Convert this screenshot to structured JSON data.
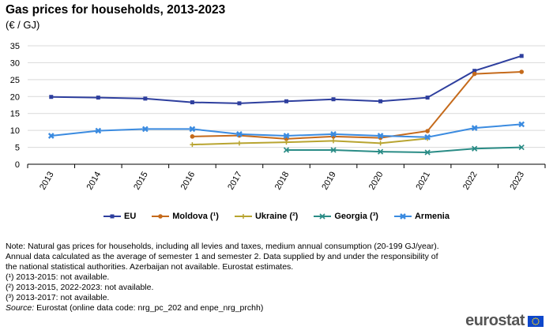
{
  "header": {
    "title": "Gas prices for households, 2013-2023",
    "subtitle": "(€ / GJ)"
  },
  "chart_data": {
    "type": "line",
    "title": "Gas prices for households, 2013-2023",
    "subtitle": "(€ / GJ)",
    "xlabel": "",
    "ylabel": "",
    "categories": [
      "2013",
      "2014",
      "2015",
      "2016",
      "2017",
      "2018",
      "2019",
      "2020",
      "2021",
      "2022",
      "2023"
    ],
    "ylim": [
      0,
      35
    ],
    "yticks": [
      0,
      5,
      10,
      15,
      20,
      25,
      30,
      35
    ],
    "grid": "horizontal",
    "legend_position": "bottom",
    "series": [
      {
        "name": "EU",
        "color": "#2e3f9e",
        "marker": "square",
        "values": [
          19.9,
          19.7,
          19.4,
          18.3,
          18.0,
          18.6,
          19.2,
          18.6,
          19.7,
          27.6,
          32.0
        ]
      },
      {
        "name": "Moldova (¹)",
        "color": "#c56a1b",
        "marker": "circle",
        "values": [
          null,
          null,
          null,
          8.2,
          8.5,
          7.5,
          8.2,
          7.8,
          9.8,
          26.7,
          27.3
        ]
      },
      {
        "name": "Ukraine (²)",
        "color": "#b8a430",
        "marker": "plus",
        "values": [
          null,
          null,
          null,
          5.8,
          6.2,
          6.5,
          6.9,
          6.2,
          7.6,
          null,
          null
        ]
      },
      {
        "name": "Georgia (³)",
        "color": "#2a8c86",
        "marker": "x",
        "values": [
          null,
          null,
          null,
          null,
          null,
          4.2,
          4.2,
          3.7,
          3.5,
          4.6,
          5.0
        ]
      },
      {
        "name": "Armenia",
        "color": "#3b8be0",
        "marker": "x-bold",
        "values": [
          8.4,
          9.9,
          10.4,
          10.4,
          8.9,
          8.4,
          8.9,
          8.4,
          8.0,
          10.7,
          11.8
        ]
      }
    ]
  },
  "notes": {
    "lines": [
      "Note: Natural gas prices for households, including all levies and taxes, medium annual consumption (20-199 GJ/year).",
      "Annual data calculated as the average of semester 1 and semester 2. Data supplied by and under the responsibility of",
      "the national statistical authorities. Azerbaijan not available. Eurostat estimates.",
      "(¹) 2013-2015: not available.",
      "(²) 2013-2015, 2022-2023: not available.",
      "(³) 2013-2017: not available."
    ],
    "source_label": "Source:",
    "source_text": " Eurostat (online data code: nrg_pc_202 and enpe_nrg_prchh)"
  },
  "logo": {
    "text": "eurostat",
    "flag_color": "#0e47cb"
  }
}
